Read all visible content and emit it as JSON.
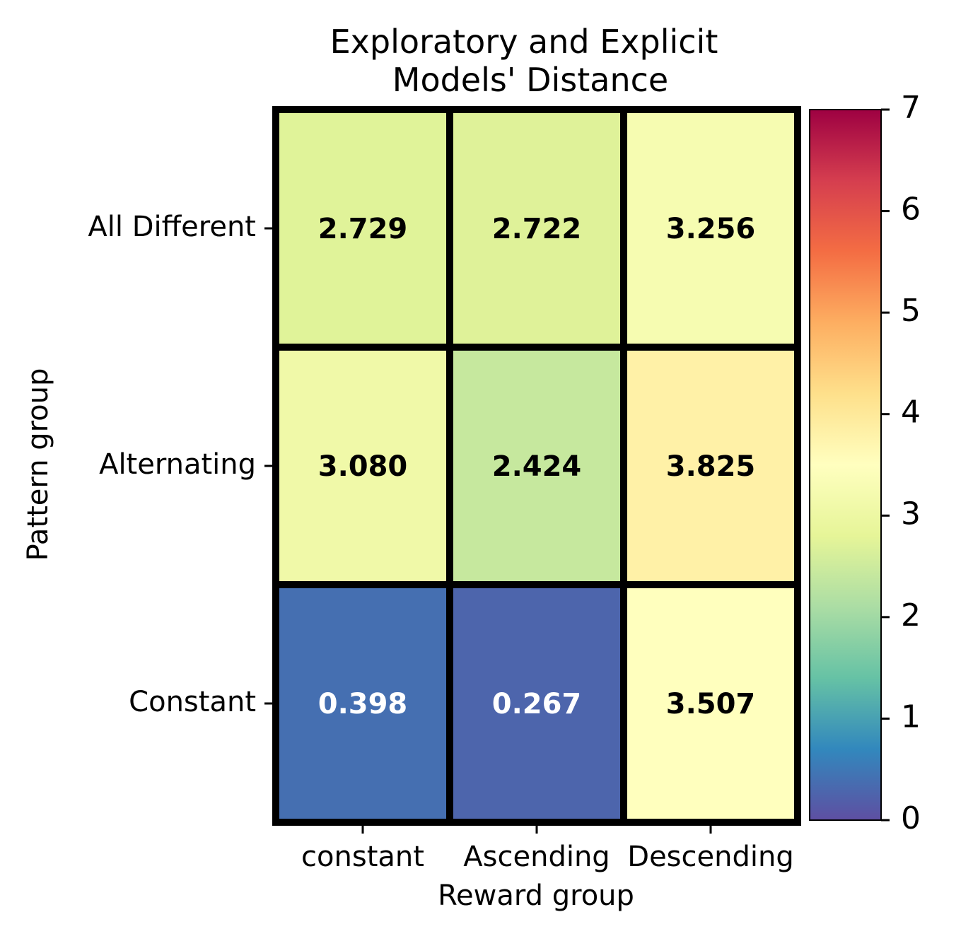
{
  "chart_data": {
    "type": "heatmap",
    "title_lines": [
      "Exploratory and Explicit",
      "Models' Distance"
    ],
    "xlabel": "Reward group",
    "ylabel": "Pattern group",
    "x_categories": [
      "constant",
      "Ascending",
      "Descending"
    ],
    "y_categories": [
      "All Different",
      "Alternating",
      "Constant"
    ],
    "values": [
      [
        2.729,
        2.722,
        3.256
      ],
      [
        3.08,
        2.424,
        3.825
      ],
      [
        0.398,
        0.267,
        3.507
      ]
    ],
    "annotations": [
      [
        "2.729",
        "2.722",
        "3.256"
      ],
      [
        "3.080",
        "2.424",
        "3.825"
      ],
      [
        "0.398",
        "0.267",
        "3.507"
      ]
    ],
    "colormap": "Spectral_r",
    "vmin": 0,
    "vmax": 7,
    "colorbar_ticks": [
      "0",
      "1",
      "2",
      "3",
      "4",
      "5",
      "6",
      "7"
    ],
    "light_text_color": "#ffffff",
    "dark_text_color": "#000000",
    "cell_border_color": "#000000"
  }
}
